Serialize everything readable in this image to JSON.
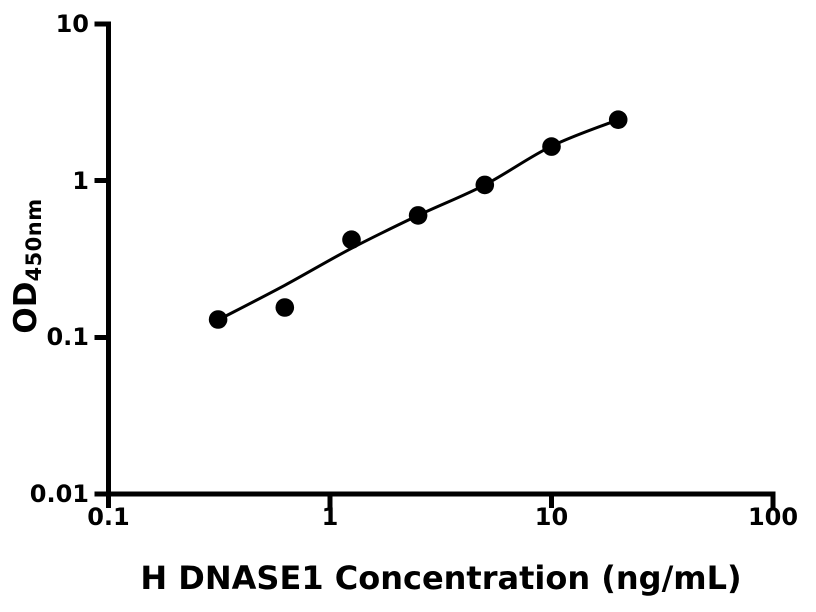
{
  "colors": {
    "foreground": "#000000",
    "background": "#ffffff"
  },
  "chart_data": {
    "type": "scatter",
    "title": "",
    "xlabel": "H DNASE1 Concentration (ng/mL)",
    "ylabel_main": "OD",
    "ylabel_sub": "450nm",
    "xscale": "log",
    "yscale": "log",
    "xlim": [
      0.1,
      100
    ],
    "ylim": [
      0.01,
      10
    ],
    "grid": false,
    "legend": null,
    "x_ticks": [
      {
        "v": 0.1,
        "label": "0.1"
      },
      {
        "v": 1,
        "label": "1"
      },
      {
        "v": 10,
        "label": "10"
      },
      {
        "v": 100,
        "label": "100"
      }
    ],
    "y_ticks": [
      {
        "v": 0.01,
        "label": "0.01"
      },
      {
        "v": 0.1,
        "label": "0.1"
      },
      {
        "v": 1,
        "label": "1"
      },
      {
        "v": 10,
        "label": "10"
      }
    ],
    "series": [
      {
        "name": "standard-points",
        "kind": "scatter",
        "marker": "filled-circle",
        "color": "#000000",
        "x": [
          0.3125,
          0.625,
          1.25,
          2.5,
          5,
          10,
          20
        ],
        "y": [
          0.13,
          0.155,
          0.42,
          0.6,
          0.94,
          1.65,
          2.45
        ]
      },
      {
        "name": "fit-curve",
        "kind": "line",
        "color": "#000000",
        "x": [
          0.3125,
          0.625,
          1.25,
          2.5,
          5,
          10,
          20
        ],
        "y": [
          0.129,
          0.215,
          0.37,
          0.6,
          0.94,
          1.66,
          2.45
        ]
      }
    ]
  }
}
